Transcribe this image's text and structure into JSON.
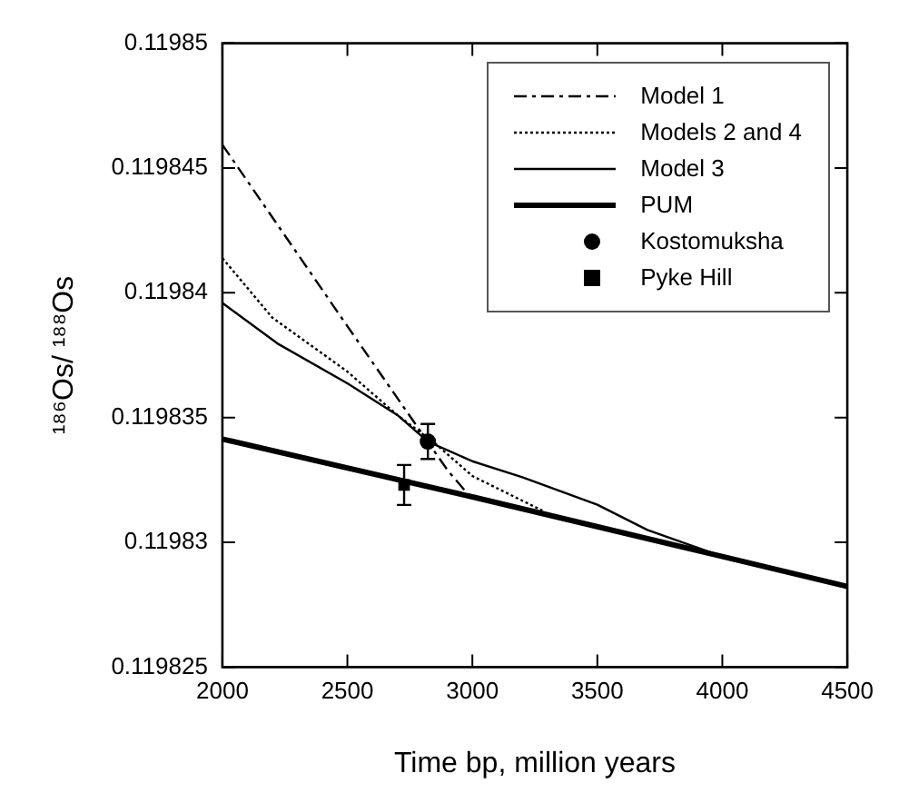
{
  "chart_data": {
    "type": "line",
    "xlabel": "Time bp, million years",
    "ylabel": "¹⁸⁶Os/ ¹⁸⁸Os",
    "xlim": [
      2000,
      4500
    ],
    "xticks": [
      2000,
      2500,
      3000,
      3500,
      4000,
      4500
    ],
    "ylim": [
      0.119825,
      0.11985
    ],
    "yticks": [
      0.119825,
      0.11983,
      0.119835,
      0.11984,
      0.119845,
      0.11985
    ],
    "grid": false,
    "legend": "top right",
    "series": [
      {
        "name": "Model 1",
        "color": "#000000",
        "line_style": "dashed",
        "marker": "none",
        "x": [
          2000,
          2500,
          2784,
          2900,
          2985
        ],
        "values": [
          0.11984593,
          0.11983866,
          0.11983457,
          0.1198329,
          0.1198319
        ]
      },
      {
        "name": "Models 2 and 4",
        "color": "#000000",
        "line_style": "dotted",
        "marker": "none",
        "x": [
          2000,
          2200,
          2500,
          2700,
          2850,
          3000,
          3280
        ],
        "values": [
          0.11984139,
          0.119839,
          0.11983684,
          0.1198351,
          0.11983397,
          0.11983266,
          0.11983127
        ]
      },
      {
        "name": "Model 3",
        "color": "#000000",
        "line_style": "solid",
        "marker": "none",
        "x": [
          2000,
          2220,
          2500,
          2700,
          2822,
          3000,
          3200,
          3500,
          3700,
          4000,
          4500
        ],
        "values": [
          0.11983959,
          0.11983797,
          0.11983637,
          0.1198351,
          0.11983404,
          0.11983325,
          0.11983261,
          0.11983151,
          0.1198305,
          0.11982943,
          0.11982823
        ]
      },
      {
        "name": "PUM",
        "color": "#000000",
        "line_style": "solid",
        "marker": "none",
        "x": [
          2000,
          3000,
          4000,
          4500
        ],
        "values": [
          0.11983414,
          0.11983182,
          0.11982943,
          0.11982823
        ]
      },
      {
        "name": "Kostomuksha",
        "type": "scatter",
        "color": "#000000",
        "marker": "circle",
        "x": [
          2822
        ],
        "values": [
          0.11983404
        ],
        "errors": [
          7e-07
        ]
      },
      {
        "name": "Pyke Hill",
        "type": "scatter",
        "color": "#000000",
        "marker": "square",
        "x": [
          2727
        ],
        "values": [
          0.1198323
        ],
        "errors": [
          8e-07
        ]
      }
    ]
  }
}
